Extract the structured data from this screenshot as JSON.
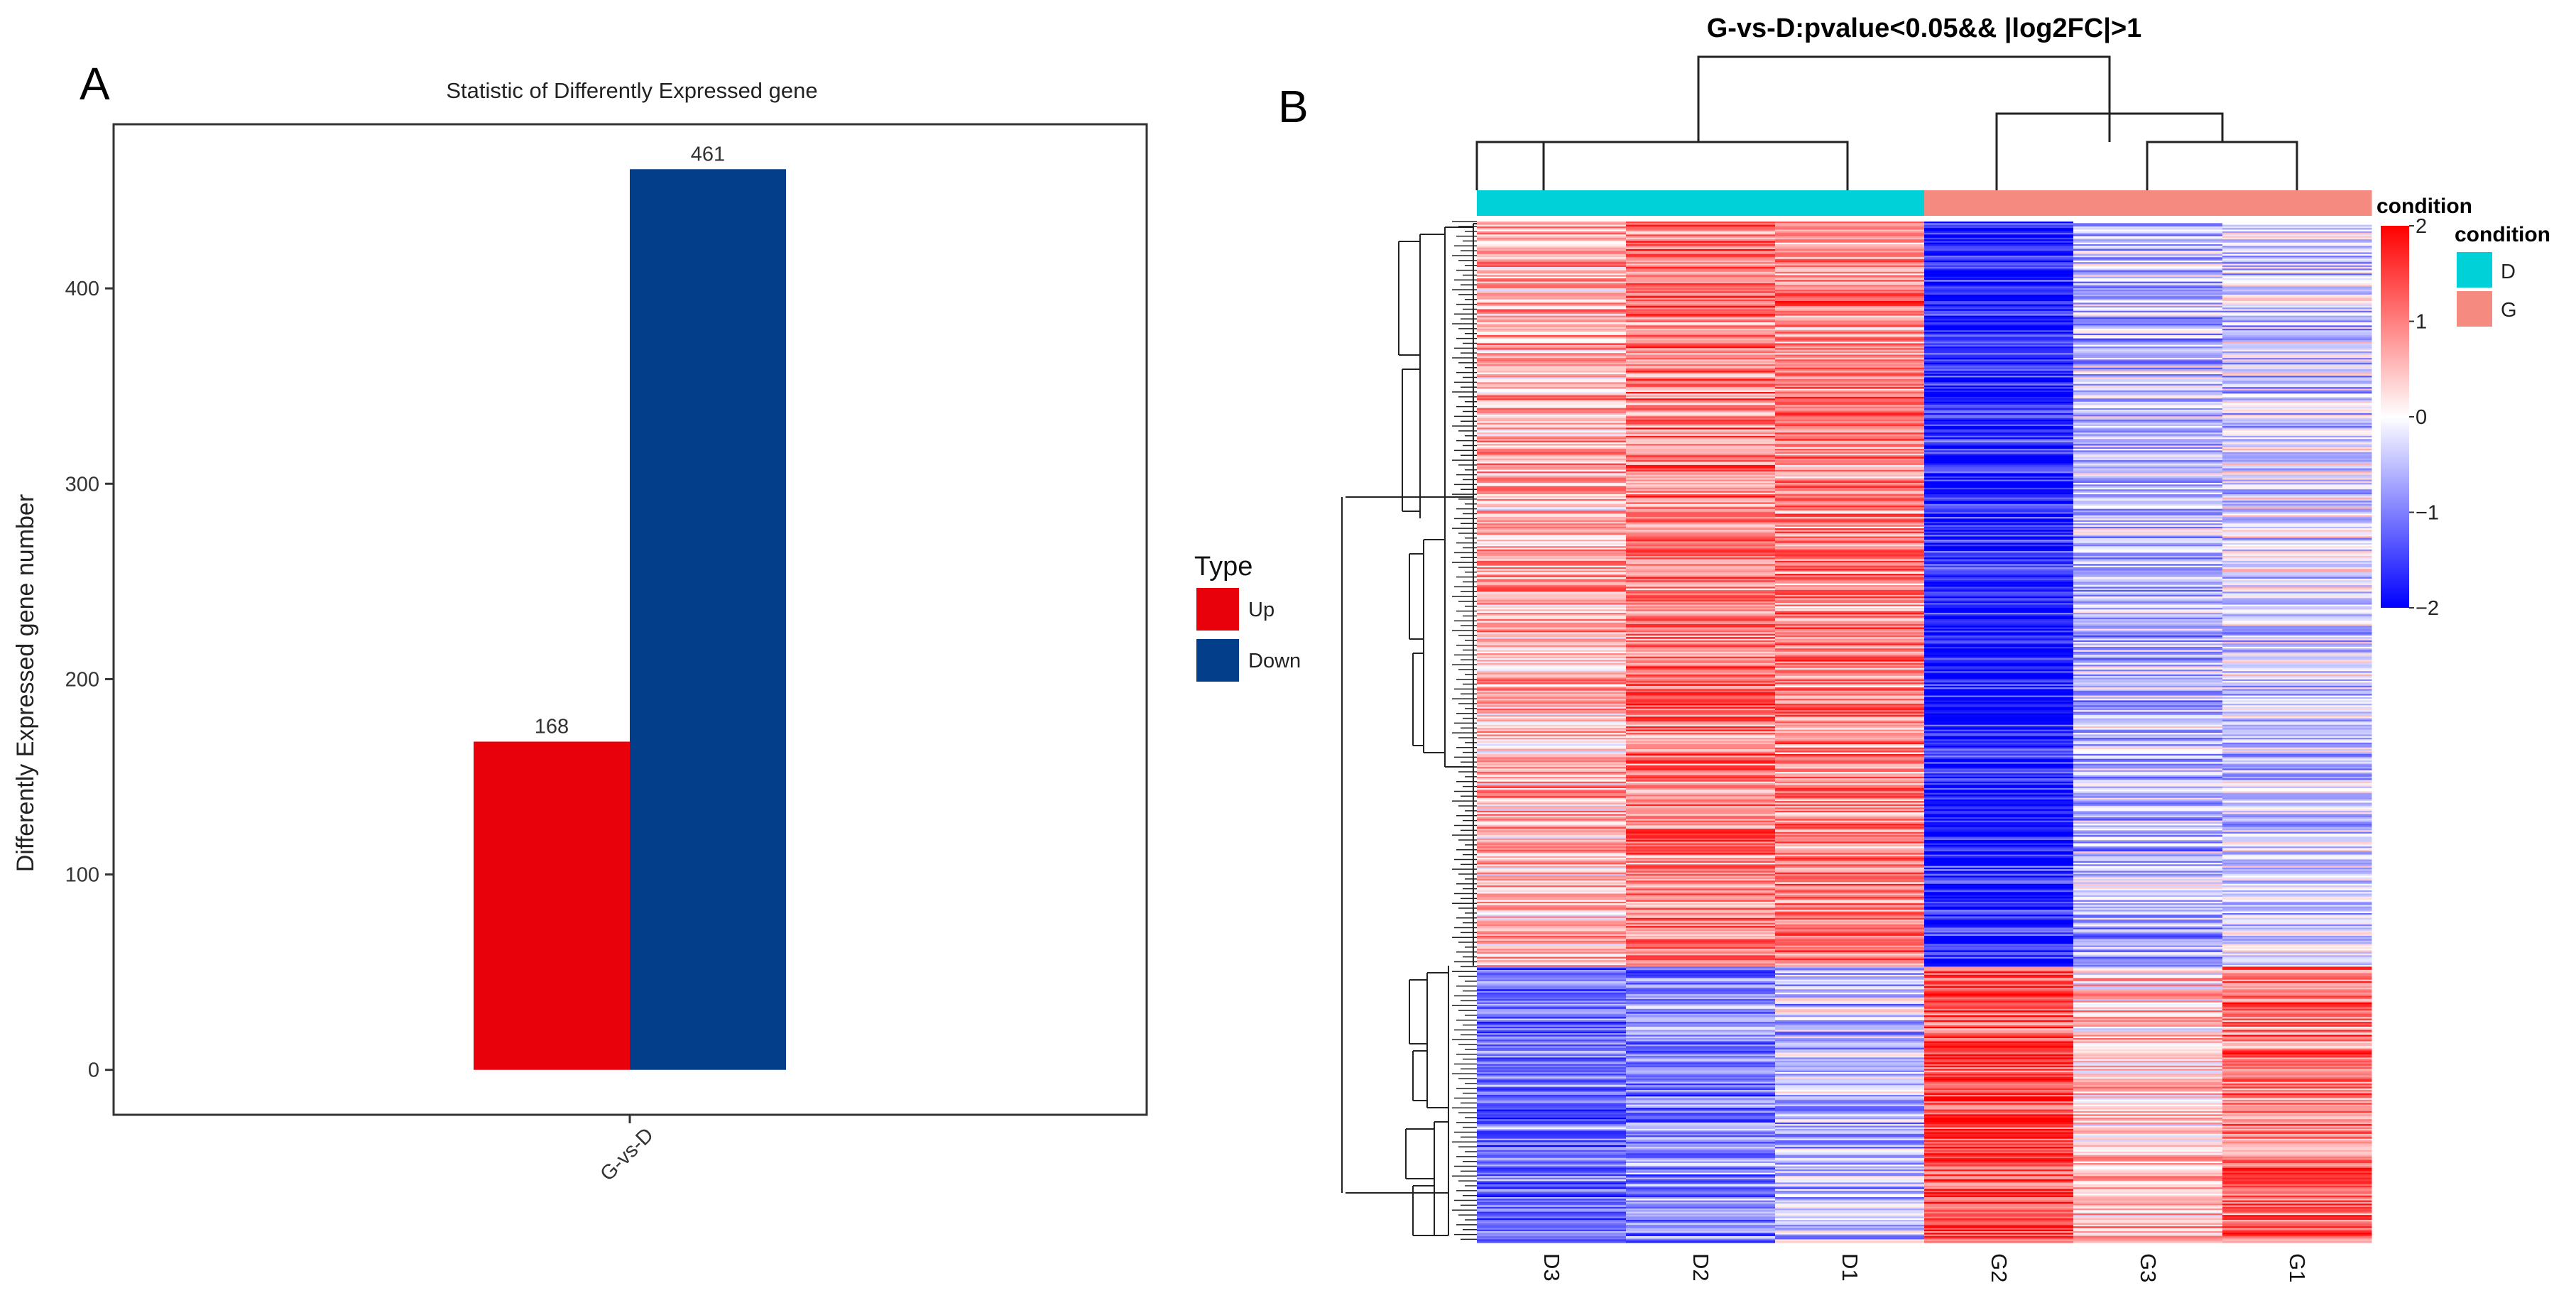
{
  "panel_labels": {
    "a": "A",
    "b": "B"
  },
  "colors": {
    "up": "#e8000b",
    "down": "#023e8a",
    "cond_D": "#00d1d8",
    "cond_G": "#f58a80",
    "heat_high": "#ff0000",
    "heat_mid": "#ffffff",
    "heat_low": "#0000ff"
  },
  "chart_data": [
    {
      "type": "bar",
      "title": "Statistic of Differently Expressed gene",
      "xlabel": "",
      "ylabel": "Differently Expressed gene number",
      "categories": [
        "G-vs-D"
      ],
      "series": [
        {
          "name": "Up",
          "values": [
            168
          ]
        },
        {
          "name": "Down",
          "values": [
            461
          ]
        }
      ],
      "ylim": [
        -23,
        484
      ],
      "yticks": [
        0,
        100,
        200,
        300,
        400
      ],
      "grid": false,
      "legend": {
        "title": "Type",
        "position": "right",
        "items": [
          "Up",
          "Down"
        ]
      }
    },
    {
      "type": "heatmap",
      "title": "G-vs-D:pvalue<0.05&& |log2FC|>1",
      "columns": [
        "D3",
        "D2",
        "D1",
        "G2",
        "G3",
        "G1"
      ],
      "column_conditions": [
        "D",
        "D",
        "D",
        "G",
        "G",
        "G"
      ],
      "annotation_title": "condition",
      "annotation_legend": {
        "title": "condition",
        "items": [
          "D",
          "G"
        ]
      },
      "colorbar": {
        "range": [
          -2,
          2
        ],
        "ticks": [
          2,
          1,
          0,
          -1,
          -2
        ],
        "tick_labels": [
          "2",
          "1",
          "0",
          "−1",
          "−2"
        ]
      },
      "n_rows": 629,
      "row_blocks": [
        {
          "fraction": 0.73,
          "mean_zscore": {
            "D3": 0.6,
            "D2": 1.0,
            "D1": 0.95,
            "G2": -1.8,
            "G3": -0.5,
            "G1": -0.3
          }
        },
        {
          "fraction": 0.27,
          "mean_zscore": {
            "D3": -1.1,
            "D2": -0.9,
            "D1": -0.5,
            "G2": 1.4,
            "G3": 0.4,
            "G1": 1.1
          }
        }
      ]
    }
  ]
}
